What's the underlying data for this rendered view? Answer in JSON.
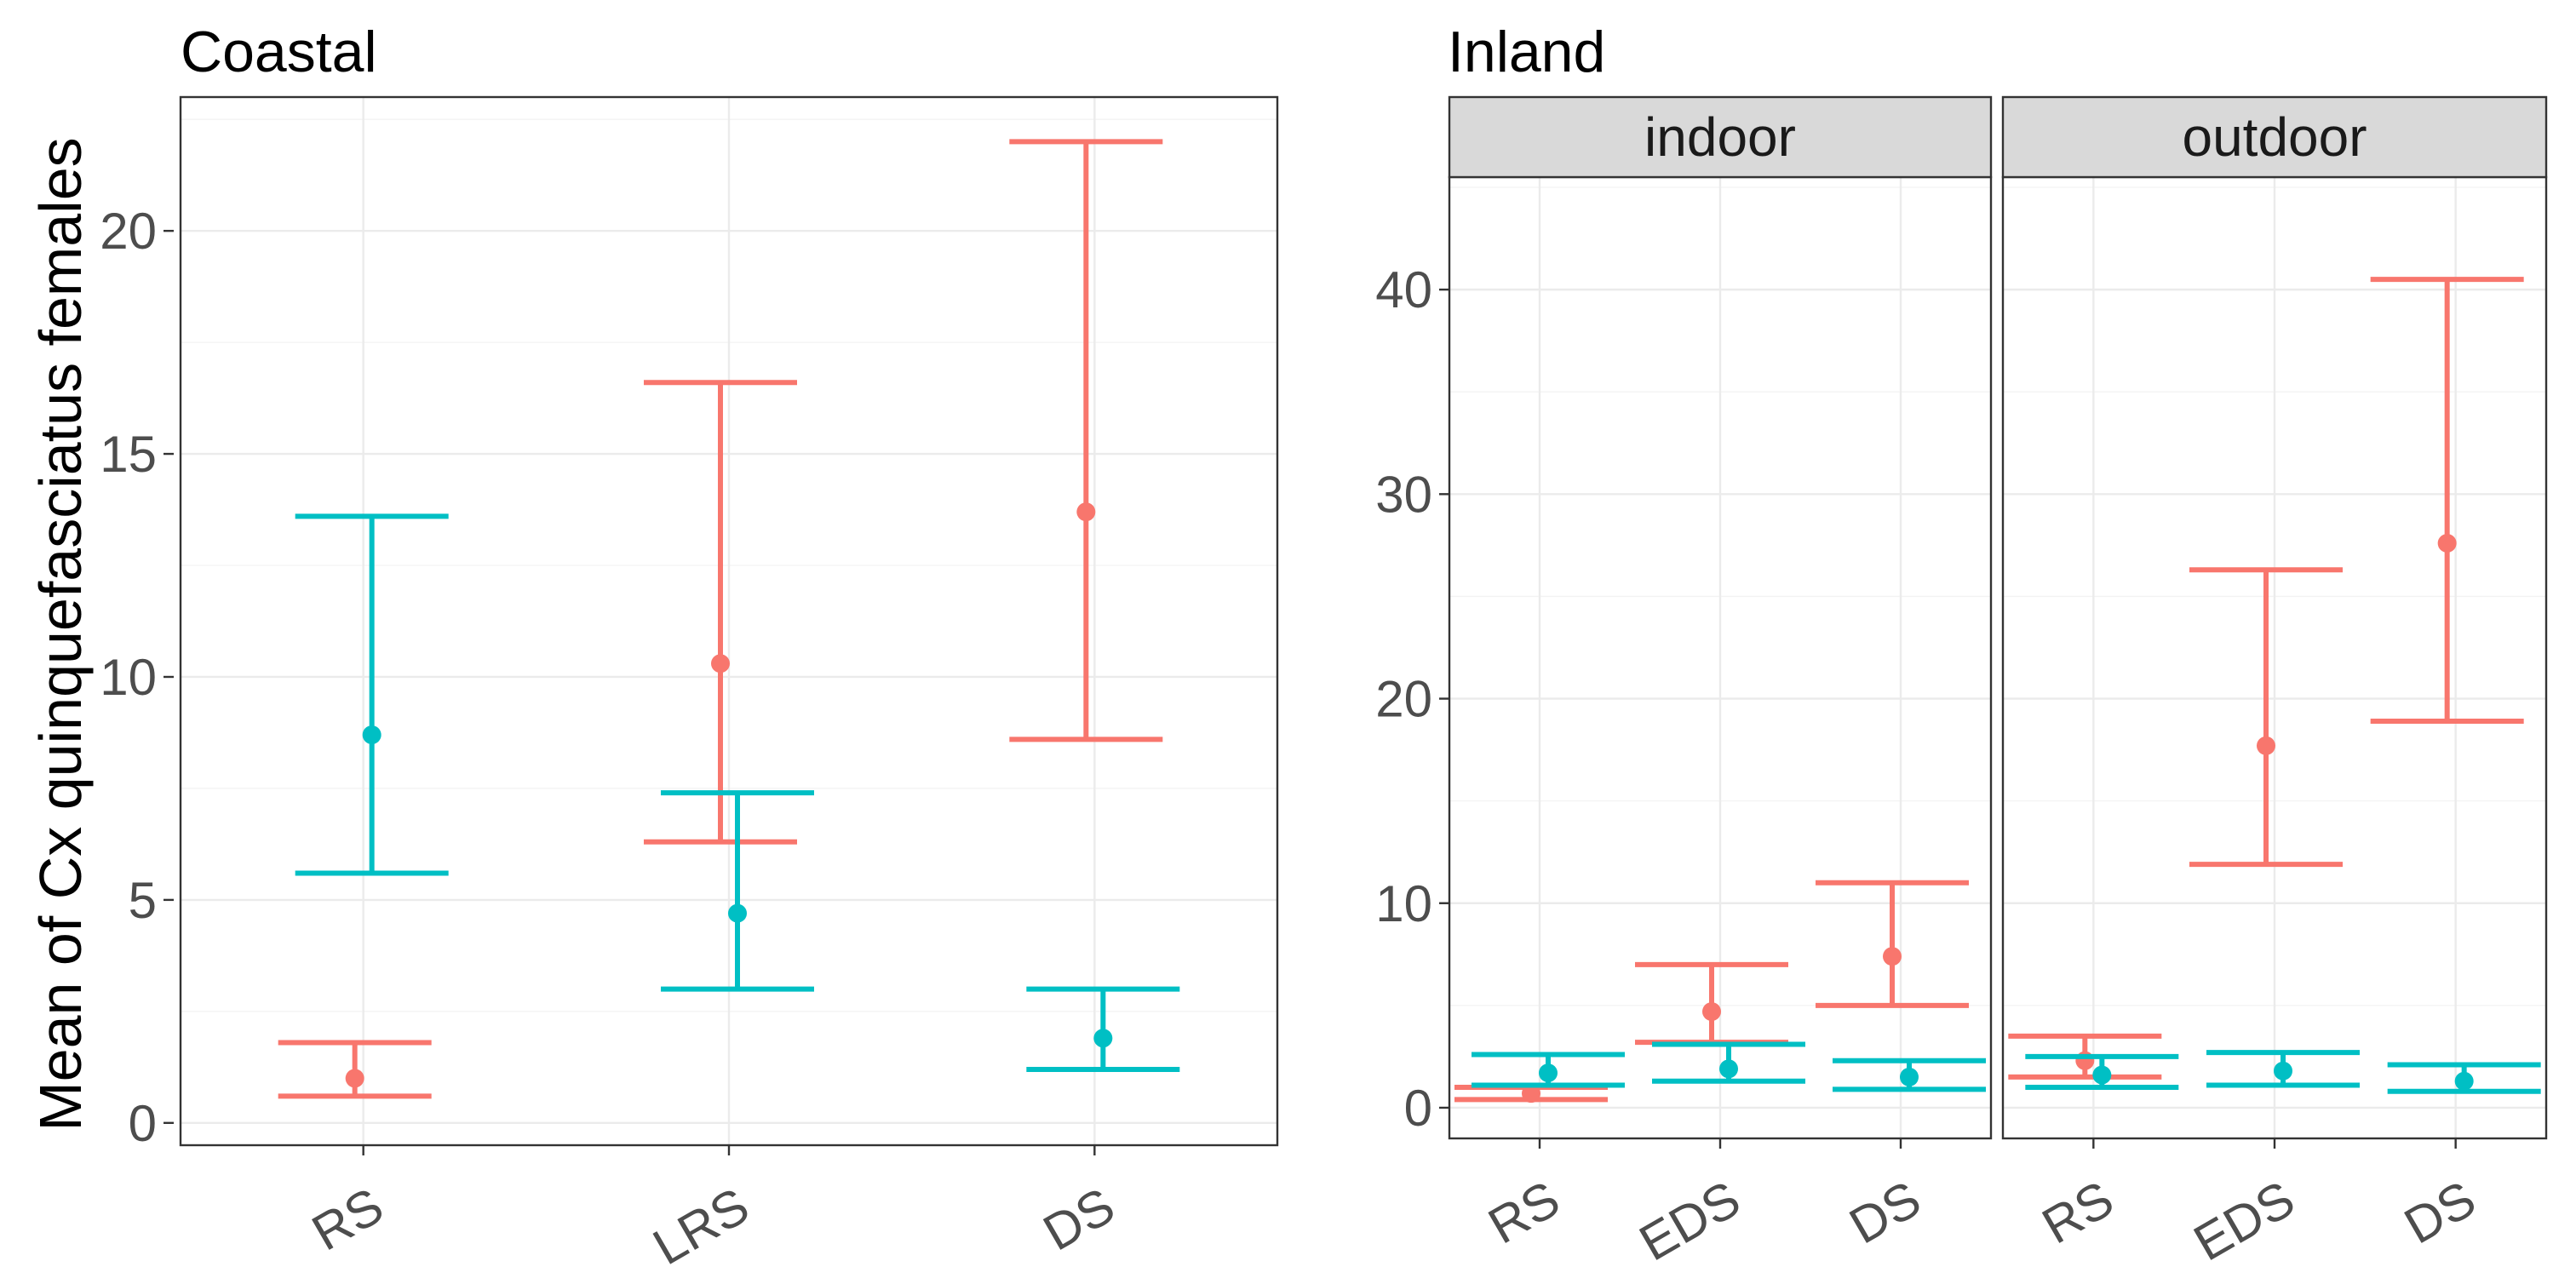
{
  "figure": {
    "y_axis_title": "Mean of Cx quinquefasciatus females",
    "series_colors": {
      "red": "#F8766D",
      "teal": "#00BFC4"
    }
  },
  "chart_data": [
    {
      "type": "errorbar",
      "title": "Coastal",
      "xlabel": "",
      "ylabel": "Mean of Cx quinquefasciatus females",
      "ylim": [
        -0.5,
        23
      ],
      "yticks": [
        0,
        5,
        10,
        15,
        20
      ],
      "ytick_labels": [
        "0",
        "5",
        "10",
        "15",
        "20"
      ],
      "grid": true,
      "facets": [
        {
          "strip": "",
          "categories": [
            "RS",
            "LRS",
            "DS"
          ],
          "series": [
            {
              "name": "red",
              "color": "#F8766D",
              "mean": [
                1.0,
                10.3,
                13.7
              ],
              "lower": [
                0.6,
                6.3,
                8.6
              ],
              "upper": [
                1.8,
                16.6,
                22.0
              ]
            },
            {
              "name": "teal",
              "color": "#00BFC4",
              "mean": [
                8.7,
                4.7,
                1.9
              ],
              "lower": [
                5.6,
                3.0,
                1.2
              ],
              "upper": [
                13.6,
                7.4,
                3.0
              ]
            }
          ]
        }
      ]
    },
    {
      "type": "errorbar",
      "title": "Inland",
      "xlabel": "",
      "ylabel": "",
      "ylim": [
        -1.5,
        45.5
      ],
      "yticks": [
        0,
        10,
        20,
        30,
        40
      ],
      "ytick_labels": [
        "0",
        "10",
        "20",
        "30",
        "40"
      ],
      "grid": true,
      "facets": [
        {
          "strip": "indoor",
          "categories": [
            "RS",
            "EDS",
            "DS"
          ],
          "series": [
            {
              "name": "red",
              "color": "#F8766D",
              "mean": [
                0.7,
                4.7,
                7.4
              ],
              "lower": [
                0.4,
                3.2,
                5.0
              ],
              "upper": [
                1.0,
                7.0,
                11.0
              ]
            },
            {
              "name": "teal",
              "color": "#00BFC4",
              "mean": [
                1.7,
                1.9,
                1.5
              ],
              "lower": [
                1.1,
                1.3,
                0.9
              ],
              "upper": [
                2.6,
                3.1,
                2.3
              ]
            }
          ]
        },
        {
          "strip": "outdoor",
          "categories": [
            "RS",
            "EDS",
            "DS"
          ],
          "series": [
            {
              "name": "red",
              "color": "#F8766D",
              "mean": [
                2.3,
                17.7,
                27.6
              ],
              "lower": [
                1.5,
                11.9,
                18.9
              ],
              "upper": [
                3.5,
                26.3,
                40.5
              ]
            },
            {
              "name": "teal",
              "color": "#00BFC4",
              "mean": [
                1.6,
                1.8,
                1.3
              ],
              "lower": [
                1.0,
                1.1,
                0.8
              ],
              "upper": [
                2.5,
                2.7,
                2.1
              ]
            }
          ]
        }
      ]
    }
  ]
}
